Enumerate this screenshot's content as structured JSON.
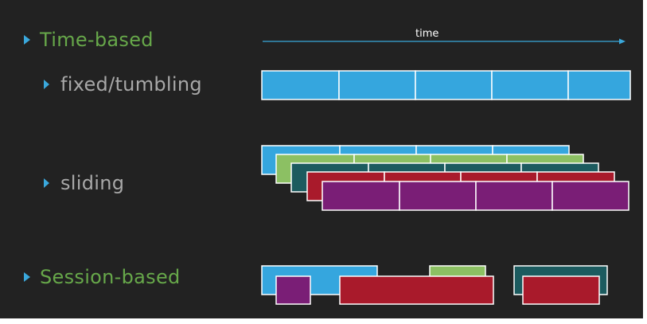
{
  "bullets": {
    "time_based": "Time-based",
    "fixed_tumbling": "fixed/tumbling",
    "sliding": "sliding",
    "session_based": "Session-based"
  },
  "axis": {
    "label": "time"
  },
  "colors": {
    "background": "#222222",
    "bullet": "#3aa8dc",
    "heading": "#67a84a",
    "subheading": "#a8a8a8",
    "window_blue": "#35a6de",
    "window_green": "#8cc063",
    "window_teal": "#1c5b5f",
    "window_red": "#a91a2b",
    "window_purple": "#7a1e76",
    "window_border": "#ffffff"
  }
}
